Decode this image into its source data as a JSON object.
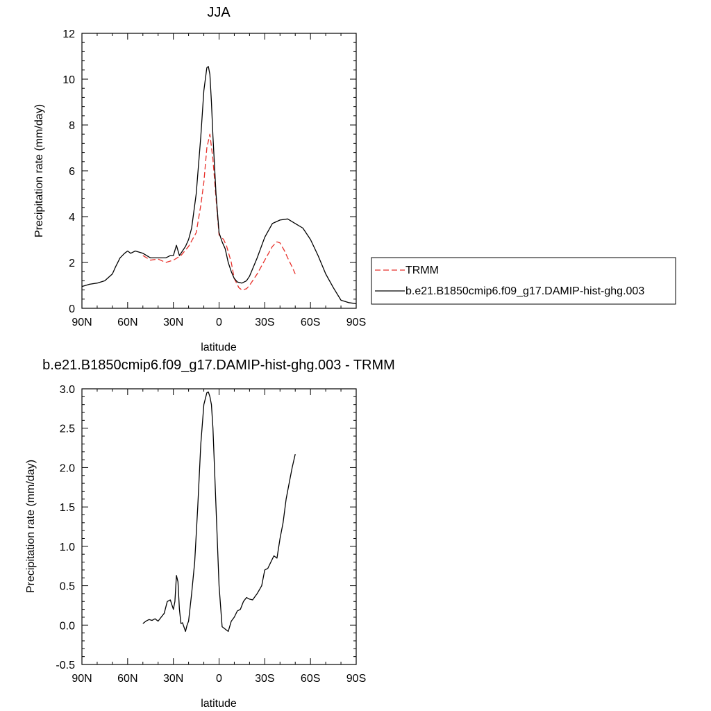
{
  "chart_data": [
    {
      "type": "line",
      "title": "JJA",
      "xlabel": "latitude",
      "ylabel": "Precipitation rate (mm/day)",
      "xticks": [
        "90N",
        "60N",
        "30N",
        "0",
        "30S",
        "60S",
        "90S"
      ],
      "yticks": [
        "0",
        "2",
        "4",
        "6",
        "8",
        "10",
        "12"
      ],
      "xlim": [
        90,
        -90
      ],
      "ylim": [
        0,
        12
      ],
      "legend_position": "right",
      "series": [
        {
          "name": "TRMM",
          "color": "#e8302a",
          "dash": "dashed",
          "x": [
            50,
            45,
            40,
            35,
            30,
            25,
            20,
            15,
            12,
            10,
            8,
            6,
            4,
            2,
            0,
            -3,
            -5,
            -8,
            -10,
            -13,
            -15,
            -18,
            -20,
            -25,
            -30,
            -35,
            -38,
            -40,
            -43,
            -45,
            -48,
            -50
          ],
          "y": [
            2.3,
            2.1,
            2.15,
            2.0,
            2.1,
            2.3,
            2.7,
            3.3,
            4.5,
            5.5,
            7.0,
            7.6,
            6.5,
            4.8,
            3.2,
            3.0,
            2.7,
            2.0,
            1.3,
            0.9,
            0.8,
            0.85,
            1.0,
            1.5,
            2.1,
            2.7,
            2.9,
            2.85,
            2.5,
            2.2,
            1.8,
            1.5
          ]
        },
        {
          "name": "b.e21.B1850cmip6.f09_g17.DAMIP-hist-ghg.003",
          "color": "#000000",
          "dash": "solid",
          "x": [
            90,
            85,
            80,
            75,
            70,
            68,
            65,
            62,
            60,
            58,
            55,
            50,
            45,
            40,
            35,
            32,
            30,
            28,
            26,
            24,
            22,
            20,
            18,
            15,
            12,
            10,
            8,
            7,
            6,
            5,
            4,
            2,
            0,
            -2,
            -4,
            -6,
            -8,
            -10,
            -12,
            -15,
            -18,
            -20,
            -25,
            -30,
            -35,
            -40,
            -45,
            -50,
            -55,
            -60,
            -65,
            -70,
            -75,
            -80,
            -85,
            -90
          ],
          "y": [
            0.95,
            1.05,
            1.1,
            1.2,
            1.5,
            1.8,
            2.2,
            2.4,
            2.5,
            2.4,
            2.5,
            2.4,
            2.2,
            2.2,
            2.2,
            2.3,
            2.3,
            2.75,
            2.3,
            2.5,
            2.7,
            3.0,
            3.5,
            5.0,
            7.5,
            9.5,
            10.5,
            10.55,
            10.2,
            9.0,
            7.5,
            5.0,
            3.3,
            2.9,
            2.6,
            2.0,
            1.6,
            1.3,
            1.15,
            1.1,
            1.2,
            1.4,
            2.2,
            3.1,
            3.7,
            3.85,
            3.9,
            3.7,
            3.5,
            3.0,
            2.3,
            1.5,
            0.9,
            0.35,
            0.25,
            0.2
          ]
        }
      ]
    },
    {
      "type": "line",
      "title": "b.e21.B1850cmip6.f09_g17.DAMIP-hist-ghg.003 - TRMM",
      "xlabel": "latitude",
      "ylabel": "Precipitation rate (mm/day)",
      "xticks": [
        "90N",
        "60N",
        "30N",
        "0",
        "30S",
        "60S",
        "90S"
      ],
      "yticks": [
        "-0.5",
        "0.0",
        "0.5",
        "1.0",
        "1.5",
        "2.0",
        "2.5",
        "3.0"
      ],
      "xlim": [
        90,
        -90
      ],
      "ylim": [
        -0.5,
        3.0
      ],
      "series": [
        {
          "color": "#000000",
          "dash": "solid",
          "x": [
            50,
            48,
            46,
            44,
            42,
            40,
            38,
            36,
            34,
            32,
            30,
            29,
            28,
            27,
            26,
            25,
            24,
            22,
            21,
            20,
            18,
            16,
            14,
            12,
            10,
            8,
            7,
            6,
            5,
            4,
            3,
            2,
            0,
            -2,
            -4,
            -6,
            -8,
            -10,
            -12,
            -14,
            -16,
            -18,
            -20,
            -22,
            -25,
            -28,
            -30,
            -32,
            -34,
            -36,
            -38,
            -40,
            -42,
            -44,
            -46,
            -48,
            -50
          ],
          "y": [
            0.02,
            0.05,
            0.07,
            0.06,
            0.08,
            0.05,
            0.1,
            0.15,
            0.3,
            0.32,
            0.2,
            0.3,
            0.63,
            0.55,
            0.2,
            0.02,
            0.03,
            -0.08,
            0.0,
            0.05,
            0.4,
            0.8,
            1.5,
            2.3,
            2.8,
            2.95,
            2.96,
            2.9,
            2.8,
            2.5,
            2.0,
            1.5,
            0.5,
            -0.02,
            -0.05,
            -0.08,
            0.05,
            0.1,
            0.18,
            0.2,
            0.3,
            0.35,
            0.33,
            0.32,
            0.4,
            0.5,
            0.7,
            0.72,
            0.8,
            0.88,
            0.85,
            1.1,
            1.3,
            1.6,
            1.8,
            2.0,
            2.17
          ]
        }
      ]
    }
  ]
}
